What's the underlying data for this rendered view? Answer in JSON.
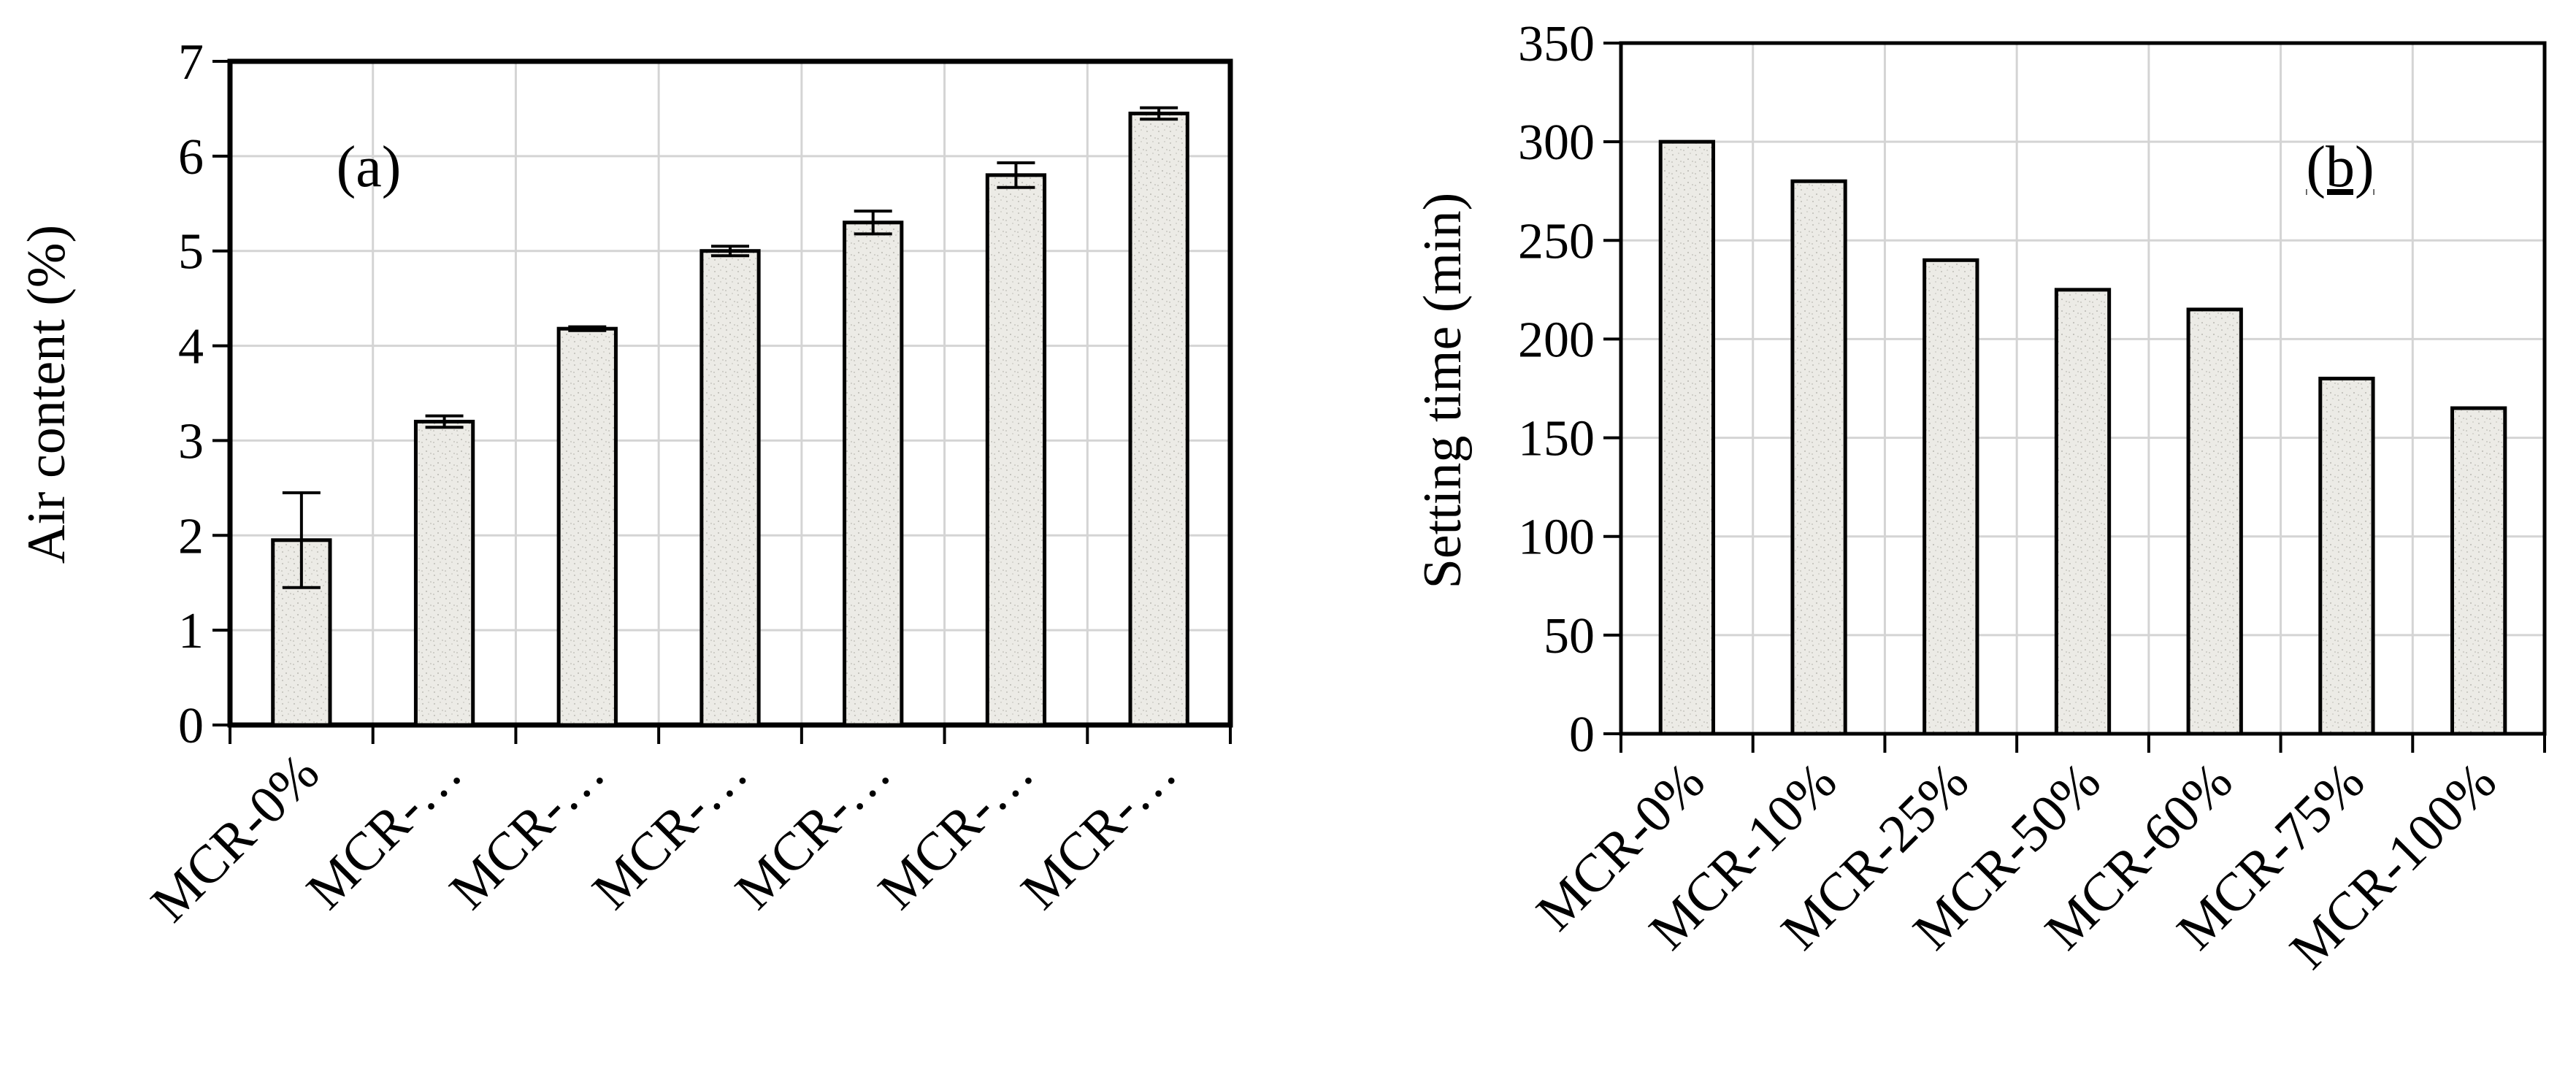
{
  "colors": {
    "bar_fill": "#ecebe6",
    "bar_stroke": "#000000",
    "grid": "#d4d4d4",
    "axis": "#000000"
  },
  "chart_data": [
    {
      "type": "bar",
      "panel_label": "(a)",
      "xlabel": "",
      "ylabel": "Air content  (%)",
      "ylim": [
        0,
        7
      ],
      "yticks": [
        0,
        1,
        2,
        3,
        4,
        5,
        6,
        7
      ],
      "grid": true,
      "categories": [
        "MCR-0%",
        "MCR-…",
        "MCR-…",
        "MCR-…",
        "MCR-…",
        "MCR-…",
        "MCR-…"
      ],
      "values": [
        1.95,
        3.2,
        4.18,
        5.0,
        5.3,
        5.8,
        6.45
      ],
      "error": [
        0.5,
        0.06,
        0.02,
        0.05,
        0.12,
        0.13,
        0.06
      ]
    },
    {
      "type": "bar",
      "panel_label": "(b)",
      "xlabel": "",
      "ylabel": "Setting time (min)",
      "ylim": [
        0,
        350
      ],
      "yticks": [
        0,
        50,
        100,
        150,
        200,
        250,
        300,
        350
      ],
      "grid": true,
      "categories": [
        "MCR-0%",
        "MCR-10%",
        "MCR-25%",
        "MCR-50%",
        "MCR-60%",
        "MCR-75%",
        "MCR-100%"
      ],
      "values": [
        300,
        280,
        240,
        225,
        215,
        180,
        165
      ]
    }
  ]
}
